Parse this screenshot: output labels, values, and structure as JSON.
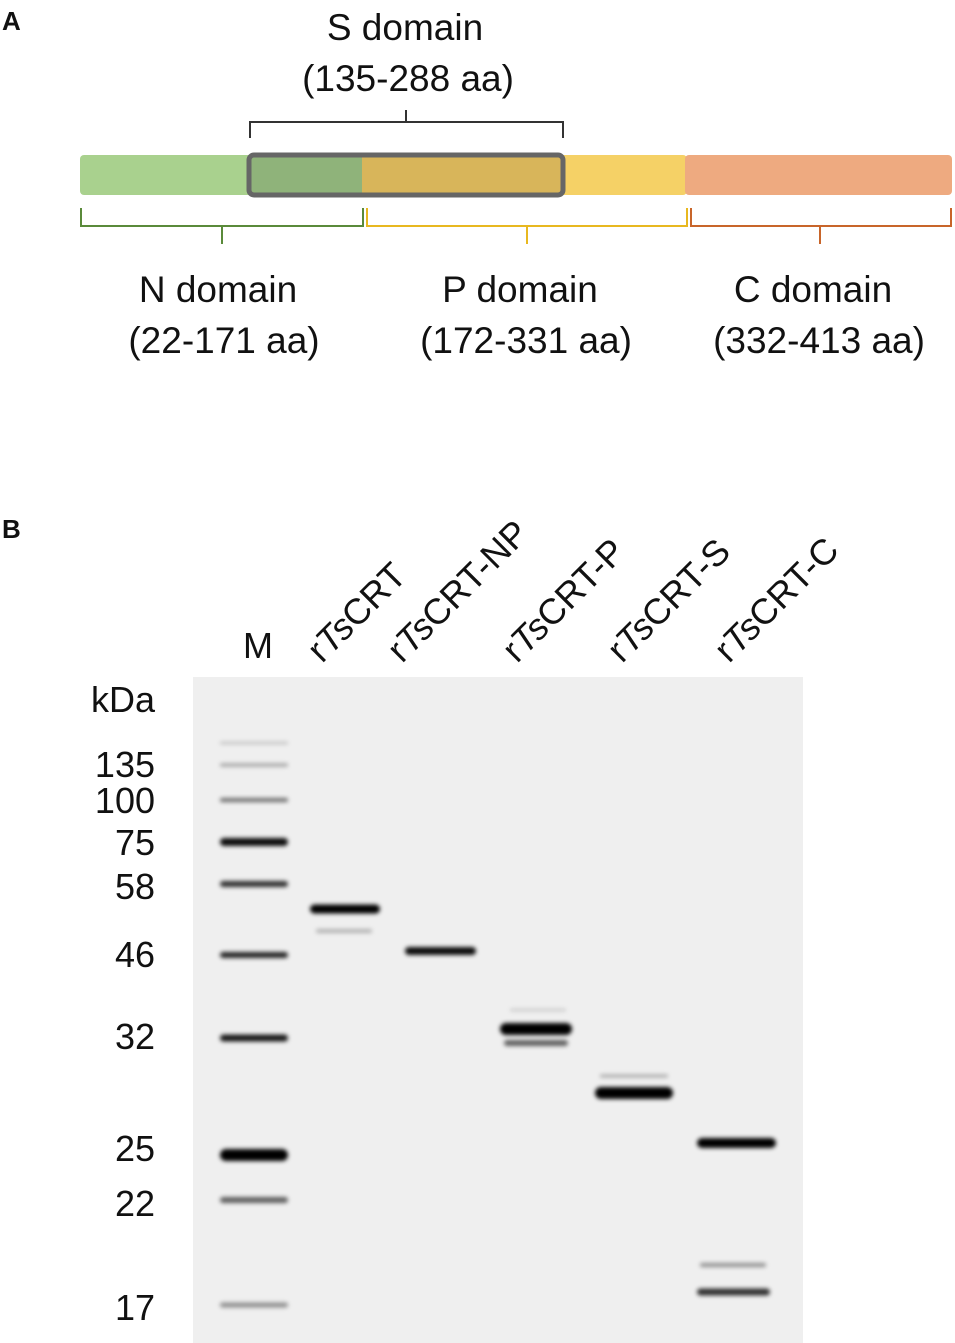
{
  "panel_a": {
    "label": "A",
    "s_domain": {
      "name": "S domain",
      "range": "(135-288 aa)"
    },
    "domains": [
      {
        "name": "N domain",
        "range": "(22-171 aa)"
      },
      {
        "name": "P domain",
        "range": "(172-331 aa)"
      },
      {
        "name": "C domain",
        "range": "(332-413 aa)"
      }
    ]
  },
  "panel_b": {
    "label": "B",
    "unit": "kDa",
    "marker_lane": "M",
    "lanes": [
      {
        "prefix": "r",
        "italic": "Ts",
        "suffix": "CRT"
      },
      {
        "prefix": "r",
        "italic": "Ts",
        "suffix": "CRT-NP"
      },
      {
        "prefix": "r",
        "italic": "Ts",
        "suffix": "CRT-P"
      },
      {
        "prefix": "r",
        "italic": "Ts",
        "suffix": "CRT-S"
      },
      {
        "prefix": "r",
        "italic": "Ts",
        "suffix": "CRT-C"
      }
    ],
    "markers": [
      "135",
      "100",
      "75",
      "58",
      "46",
      "32",
      "25",
      "22",
      "17"
    ]
  }
}
